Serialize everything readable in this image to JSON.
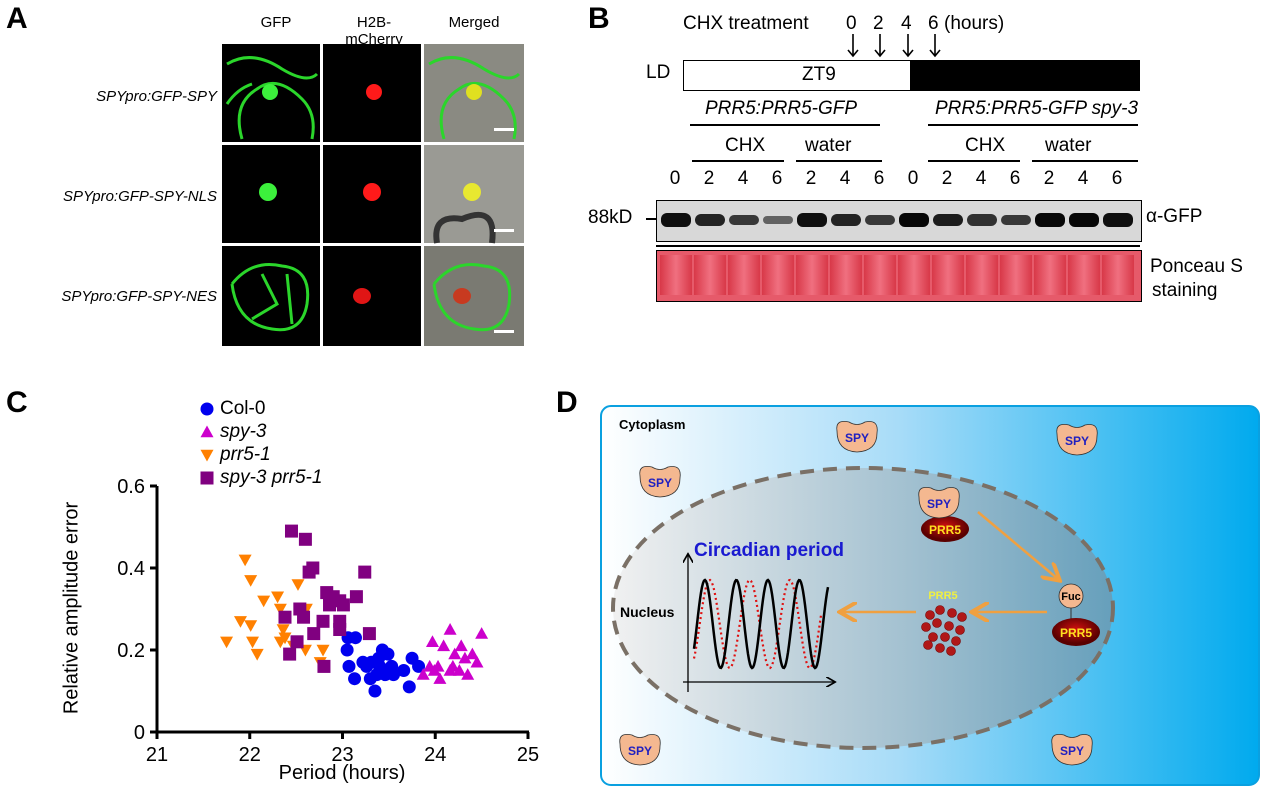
{
  "panels": {
    "a": "A",
    "b": "B",
    "c": "C",
    "d": "D"
  },
  "panel_a": {
    "columns": [
      "GFP",
      "H2B-\nmCherry",
      "Merged"
    ],
    "column_lines": [
      [
        "GFP"
      ],
      [
        "H2B-",
        "mCherry"
      ],
      [
        "Merged"
      ]
    ],
    "rows": [
      "SPYpro:GFP-SPY",
      "SPYpro:GFP-SPY-NLS",
      "SPYpro:GFP-SPY-NES"
    ]
  },
  "panel_b": {
    "treatment_label": "CHX treatment",
    "time_points": [
      "0",
      "2",
      "4",
      "6"
    ],
    "time_unit": "(hours)",
    "ld_label": "LD",
    "zt_label": "ZT9",
    "genotypes": [
      "PRR5:PRR5-GFP",
      "PRR5:PRR5-GFP spy-3"
    ],
    "treatments": [
      "CHX",
      "water",
      "CHX",
      "water"
    ],
    "lanes": [
      "0",
      "2",
      "4",
      "6",
      "2",
      "4",
      "6",
      "0",
      "2",
      "4",
      "6",
      "2",
      "4",
      "6"
    ],
    "band_intensity": [
      0.9,
      0.75,
      0.6,
      0.3,
      0.9,
      0.75,
      0.6,
      0.95,
      0.8,
      0.65,
      0.6,
      0.95,
      0.95,
      0.9
    ],
    "marker": "88kD",
    "antibody": "α-GFP",
    "loading_control": [
      "Ponceau S",
      "staining"
    ]
  },
  "chart_data": {
    "type": "scatter",
    "xlabel": "Period (hours)",
    "ylabel": "Relative amplitude error",
    "xlim": [
      21,
      25
    ],
    "ylim": [
      0,
      0.6
    ],
    "xticks": [
      "21",
      "22",
      "23",
      "24",
      "25"
    ],
    "yticks": [
      "0",
      "0.2",
      "0.4",
      "0.6"
    ],
    "legend_placement": "top",
    "series": [
      {
        "name": "Col-0",
        "marker": "circle",
        "color": "#0000ee",
        "points": [
          [
            23.06,
            0.23
          ],
          [
            23.14,
            0.23
          ],
          [
            23.05,
            0.2
          ],
          [
            23.43,
            0.2
          ],
          [
            23.49,
            0.19
          ],
          [
            23.75,
            0.18
          ],
          [
            23.07,
            0.16
          ],
          [
            23.22,
            0.17
          ],
          [
            23.31,
            0.17
          ],
          [
            23.39,
            0.18
          ],
          [
            23.26,
            0.16
          ],
          [
            23.4,
            0.16
          ],
          [
            23.53,
            0.16
          ],
          [
            23.82,
            0.16
          ],
          [
            23.66,
            0.15
          ],
          [
            23.13,
            0.13
          ],
          [
            23.3,
            0.13
          ],
          [
            23.46,
            0.14
          ],
          [
            23.55,
            0.14
          ],
          [
            23.37,
            0.14
          ],
          [
            23.72,
            0.11
          ],
          [
            23.35,
            0.1
          ]
        ]
      },
      {
        "name": "spy-3",
        "marker": "triangle-up",
        "color": "#cc00cc",
        "points": [
          [
            24.16,
            0.25
          ],
          [
            24.5,
            0.24
          ],
          [
            23.97,
            0.22
          ],
          [
            24.09,
            0.21
          ],
          [
            24.28,
            0.21
          ],
          [
            24.4,
            0.19
          ],
          [
            24.21,
            0.19
          ],
          [
            23.94,
            0.16
          ],
          [
            24.03,
            0.16
          ],
          [
            24.19,
            0.16
          ],
          [
            24.32,
            0.18
          ],
          [
            24.35,
            0.14
          ],
          [
            23.87,
            0.14
          ],
          [
            24.05,
            0.13
          ],
          [
            24.16,
            0.15
          ],
          [
            24.26,
            0.15
          ],
          [
            23.99,
            0.15
          ],
          [
            24.45,
            0.17
          ]
        ]
      },
      {
        "name": "prr5-1",
        "marker": "triangle-down",
        "color": "#ff8000",
        "points": [
          [
            21.95,
            0.42
          ],
          [
            22.01,
            0.37
          ],
          [
            22.15,
            0.32
          ],
          [
            22.3,
            0.33
          ],
          [
            22.52,
            0.36
          ],
          [
            21.9,
            0.27
          ],
          [
            22.01,
            0.26
          ],
          [
            21.75,
            0.22
          ],
          [
            22.03,
            0.22
          ],
          [
            22.08,
            0.19
          ],
          [
            22.33,
            0.3
          ],
          [
            22.61,
            0.3
          ],
          [
            22.36,
            0.25
          ],
          [
            22.33,
            0.22
          ],
          [
            22.47,
            0.21
          ],
          [
            22.6,
            0.2
          ],
          [
            22.79,
            0.2
          ],
          [
            22.76,
            0.17
          ],
          [
            22.38,
            0.23
          ]
        ]
      },
      {
        "name": "spy-3 prr5-1",
        "marker": "square",
        "color": "#800080",
        "points": [
          [
            22.45,
            0.49
          ],
          [
            22.6,
            0.47
          ],
          [
            22.68,
            0.4
          ],
          [
            22.64,
            0.39
          ],
          [
            23.24,
            0.39
          ],
          [
            22.83,
            0.34
          ],
          [
            22.9,
            0.33
          ],
          [
            22.97,
            0.32
          ],
          [
            23.01,
            0.31
          ],
          [
            23.15,
            0.33
          ],
          [
            22.86,
            0.31
          ],
          [
            22.54,
            0.3
          ],
          [
            22.38,
            0.28
          ],
          [
            22.58,
            0.28
          ],
          [
            22.79,
            0.27
          ],
          [
            22.97,
            0.27
          ],
          [
            22.97,
            0.25
          ],
          [
            22.69,
            0.24
          ],
          [
            23.29,
            0.24
          ],
          [
            22.51,
            0.22
          ],
          [
            22.43,
            0.19
          ],
          [
            22.8,
            0.16
          ]
        ]
      }
    ]
  },
  "panel_d": {
    "cytoplasm": "Cytoplasm",
    "nucleus": "Nucleus",
    "spy": "SPY",
    "prr5": "PRR5",
    "fuc": "Fuc",
    "chart_title": "Circadian period",
    "colors": {
      "background_edge": "#00aaee",
      "arrow": "#f0a040",
      "spy_fill": "#f4b890",
      "prr5_fill": "#a00000",
      "title": "#1a1ad0"
    }
  }
}
